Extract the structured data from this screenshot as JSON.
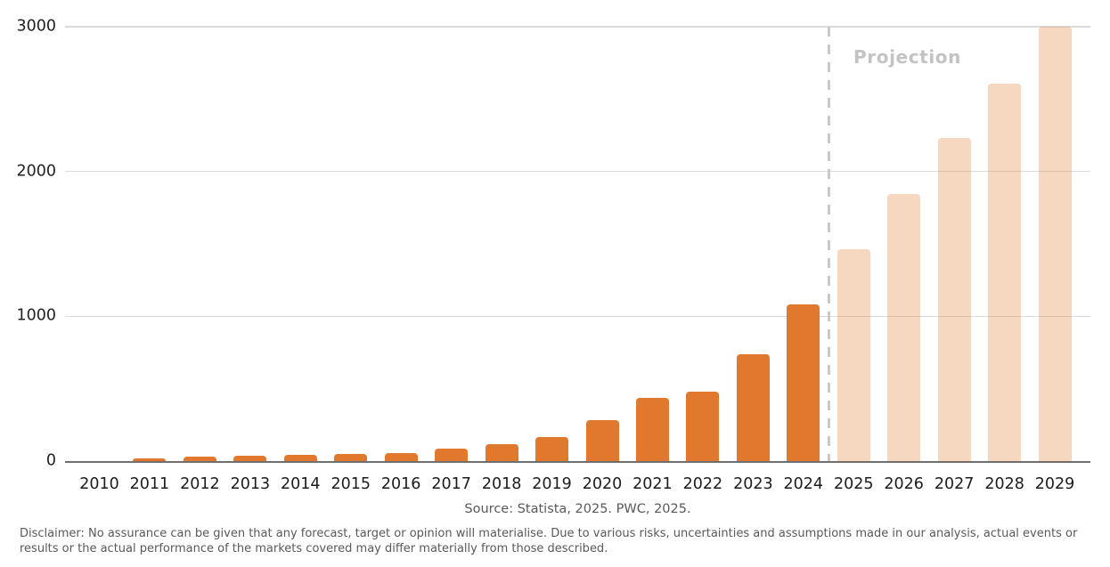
{
  "chart_data": {
    "type": "bar",
    "categories": [
      "2010",
      "2011",
      "2012",
      "2013",
      "2014",
      "2015",
      "2016",
      "2017",
      "2018",
      "2019",
      "2020",
      "2021",
      "2022",
      "2023",
      "2024",
      "2025",
      "2026",
      "2027",
      "2028",
      "2029"
    ],
    "values": [
      0,
      18,
      28,
      39,
      45,
      49,
      55,
      86,
      114,
      165,
      285,
      436,
      477,
      737,
      1085,
      1462,
      1845,
      2230,
      2605,
      3000
    ],
    "title": "",
    "xlabel": "",
    "ylabel": "",
    "ylim": [
      0,
      3000
    ],
    "yticks": [
      0,
      1000,
      2000,
      3000
    ],
    "grid": "horizontal",
    "legend": "none",
    "projection_start_category": "2025",
    "projection_label": "Projection",
    "colors": {
      "bar": "#e0792e",
      "projection_bar": "rgba(224,121,46,0.30)",
      "gridline": "#dadada",
      "axis_line": "#6f6f6f",
      "divider": "#c9c9c9",
      "projection_label": "#c3c3c3",
      "tick_label": "#222222",
      "caption_text": "#595959"
    }
  },
  "caption": {
    "source": "Source: Statista, 2025. PWC, 2025."
  },
  "disclaimer": {
    "text": "Disclaimer: No assurance can be given that any forecast, target or opinion will materialise. Due to various risks, uncertainties and assumptions made in our analysis, actual events or results or the actual performance of the markets covered may differ materially from those described."
  }
}
